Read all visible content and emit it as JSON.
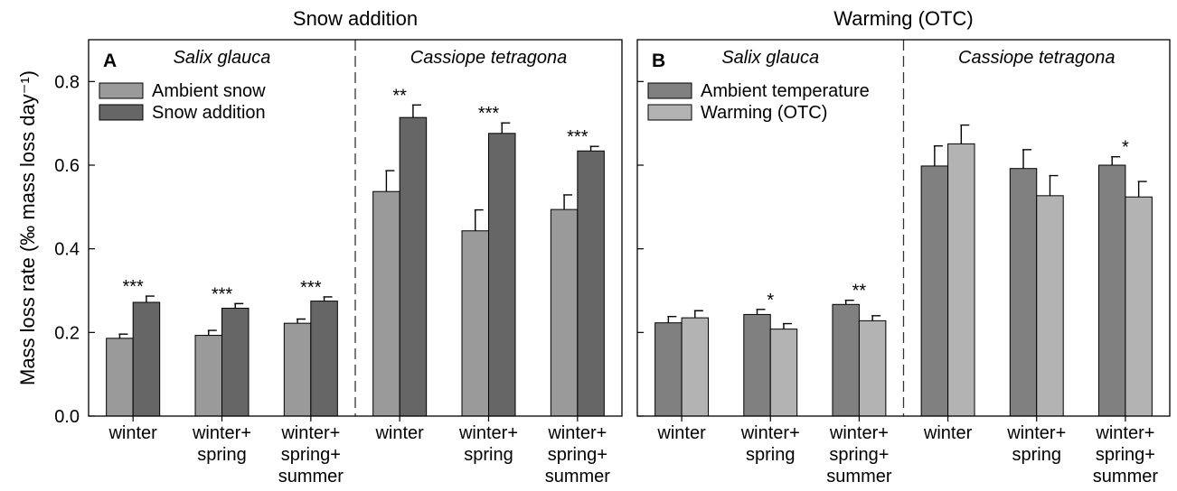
{
  "chart_data": [
    {
      "type": "bar",
      "title": "Snow addition",
      "panel_label": "A",
      "ylabel": "Mass loss rate (‰ mass loss day⁻¹)",
      "categories": [
        "winter",
        "winter+\nspring",
        "winter+\nspring+\nsummer",
        "winter",
        "winter+\nspring",
        "winter+\nspring+\nsummer"
      ],
      "groups": [
        "Salix glauca",
        "Cassiope tetragona"
      ],
      "series": [
        {
          "name": "Ambient snow",
          "color": "#9a9a9a",
          "values": [
            0.186,
            0.193,
            0.222,
            0.537,
            0.443,
            0.494
          ],
          "errors": [
            0.01,
            0.012,
            0.01,
            0.05,
            0.05,
            0.035
          ]
        },
        {
          "name": "Snow addition",
          "color": "#666666",
          "values": [
            0.272,
            0.258,
            0.275,
            0.714,
            0.676,
            0.634
          ],
          "errors": [
            0.015,
            0.011,
            0.01,
            0.03,
            0.025,
            0.011
          ]
        }
      ],
      "annotations": [
        "***",
        "***",
        "***",
        "**",
        "***",
        "***"
      ],
      "ylim": [
        0,
        0.9
      ],
      "yticks": [
        {
          "value": 0,
          "label": "0.0"
        },
        0.2,
        0.4,
        0.6,
        0.8
      ],
      "show_ytick_labels": true,
      "legend": "upper left"
    },
    {
      "type": "bar",
      "title": "Warming (OTC)",
      "panel_label": "B",
      "categories": [
        "winter",
        "winter+\nspring",
        "winter+\nspring+\nsummer",
        "winter",
        "winter+\nspring",
        "winter+\nspring+\nsummer"
      ],
      "groups": [
        "Salix glauca",
        "Cassiope tetragona"
      ],
      "series": [
        {
          "name": "Ambient temperature",
          "color": "#808080",
          "values": [
            0.223,
            0.243,
            0.267,
            0.598,
            0.592,
            0.6
          ],
          "errors": [
            0.015,
            0.012,
            0.01,
            0.048,
            0.045,
            0.02
          ]
        },
        {
          "name": "Warming (OTC)",
          "color": "#b3b3b3",
          "values": [
            0.235,
            0.208,
            0.228,
            0.651,
            0.527,
            0.524
          ],
          "errors": [
            0.017,
            0.013,
            0.012,
            0.045,
            0.048,
            0.037
          ]
        }
      ],
      "annotations": [
        null,
        "*",
        "**",
        null,
        null,
        "*"
      ],
      "ylim": [
        0,
        0.9
      ],
      "yticks": [
        0,
        0.2,
        0.4,
        0.6,
        0.8
      ],
      "show_ytick_labels": false,
      "legend": "upper left"
    }
  ]
}
